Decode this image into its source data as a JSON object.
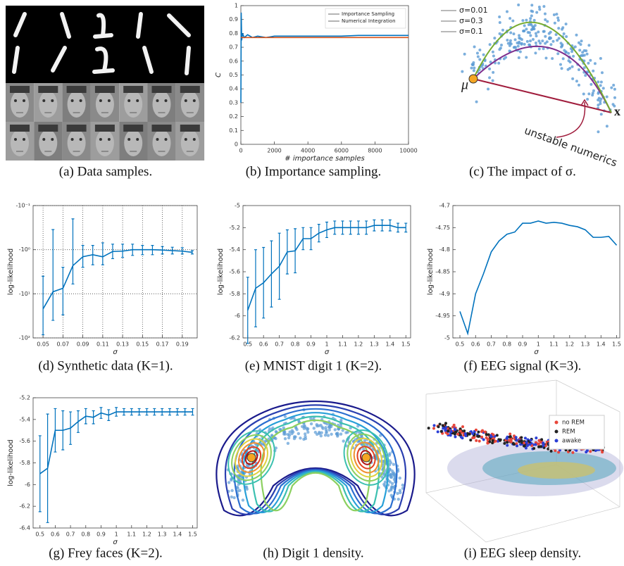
{
  "captions": [
    "(a) Data samples.",
    "(b) Importance sampling.",
    "(c) The impact of σ.",
    "(d) Synthetic data (K=1).",
    "(e) MNIST digit 1 (K=2).",
    "(f) EEG signal (K=3).",
    "(g) Frey faces (K=2).",
    "(h) Digit 1 density.",
    "(i) EEG sleep density."
  ],
  "sigma_panel": {
    "legend": [
      {
        "name": "σ=0.01",
        "color": "#a01c3c"
      },
      {
        "name": "σ=0.3",
        "color": "#7e2f8e"
      },
      {
        "name": "σ=0.1",
        "color": "#77ac30"
      }
    ],
    "mu": "μ",
    "x": "x",
    "note": "unstable numerics"
  },
  "sleep_legend": [
    {
      "name": "no REM",
      "color": "#e8463a"
    },
    {
      "name": "REM",
      "color": "#222222"
    },
    {
      "name": "awake",
      "color": "#2b3fd6"
    }
  ],
  "chart_data": [
    {
      "type": "line",
      "x_label": "# importance samples",
      "y_label": "C",
      "xlim": [
        0,
        10000
      ],
      "xticks": [
        0,
        2000,
        4000,
        6000,
        8000,
        10000
      ],
      "ylim": [
        0,
        1
      ],
      "yticks": [
        0,
        0.1,
        0.2,
        0.3,
        0.4,
        0.5,
        0.6,
        0.7,
        0.8,
        0.9,
        1
      ],
      "legend": "upper right",
      "grid": false,
      "series": [
        {
          "name": "Importance Sampling",
          "color": "#0072bd",
          "x": [
            1,
            20,
            50,
            100,
            200,
            400,
            700,
            1000,
            1500,
            2000,
            3000,
            4000,
            5000,
            6000,
            7000,
            8000,
            9000,
            10000
          ],
          "values": [
            0.3,
            0.95,
            0.75,
            0.8,
            0.77,
            0.79,
            0.77,
            0.78,
            0.77,
            0.78,
            0.78,
            0.78,
            0.78,
            0.78,
            0.785,
            0.785,
            0.785,
            0.785
          ]
        },
        {
          "name": "Numerical Integration",
          "color": "#d95319",
          "x": [
            0,
            10000
          ],
          "values": [
            0.77,
            0.77
          ]
        }
      ]
    },
    {
      "type": "line",
      "x_label": "σ",
      "y_label": "log-likelihood",
      "color": "#0072bd",
      "yscale": "log",
      "grid": true,
      "xlim": [
        0.04,
        0.205
      ],
      "xticks": [
        0.05,
        0.07,
        0.09,
        0.11,
        0.13,
        0.15,
        0.17,
        0.19
      ],
      "ylim": [
        -100,
        -0.1
      ],
      "yticks": [
        {
          "value": -100,
          "label": "-10²"
        },
        {
          "value": -10,
          "label": "-10¹"
        },
        {
          "value": -1,
          "label": "-10⁰"
        },
        {
          "value": -0.1,
          "label": "-10⁻¹"
        }
      ],
      "x": [
        0.05,
        0.06,
        0.07,
        0.08,
        0.09,
        0.1,
        0.11,
        0.12,
        0.13,
        0.14,
        0.15,
        0.16,
        0.17,
        0.18,
        0.19,
        0.2
      ],
      "values": [
        -22,
        -9,
        -7.5,
        -2.3,
        -1.45,
        -1.3,
        -1.45,
        -1.1,
        -1.08,
        -1.0,
        -1.0,
        -1.0,
        -1.02,
        -1.05,
        -1.08,
        -1.15
      ],
      "lower": [
        -85,
        -40,
        -30,
        -6,
        -2.5,
        -2.2,
        -2.2,
        -1.6,
        -1.5,
        -1.35,
        -1.3,
        -1.3,
        -1.25,
        -1.25,
        -1.25,
        -1.25
      ],
      "upper": [
        -4,
        -0.35,
        -2.5,
        -0.2,
        -0.8,
        -0.8,
        -0.7,
        -0.75,
        -0.75,
        -0.75,
        -0.8,
        -0.8,
        -0.85,
        -0.88,
        -0.9,
        -1.05
      ]
    },
    {
      "type": "line",
      "x_label": "σ",
      "y_label": "log-likelihood",
      "color": "#0072bd",
      "grid": false,
      "xlim": [
        0.47,
        1.53
      ],
      "xticks": [
        0.5,
        0.6,
        0.7,
        0.8,
        0.9,
        1,
        1.1,
        1.2,
        1.3,
        1.4,
        1.5
      ],
      "ylim": [
        -6.2,
        -5
      ],
      "yticks": [
        -6.2,
        -6,
        -5.8,
        -5.6,
        -5.4,
        -5.2,
        -5
      ],
      "x": [
        0.5,
        0.55,
        0.6,
        0.65,
        0.7,
        0.75,
        0.8,
        0.85,
        0.9,
        0.95,
        1,
        1.05,
        1.1,
        1.15,
        1.2,
        1.25,
        1.3,
        1.35,
        1.4,
        1.45,
        1.5
      ],
      "values": [
        -5.95,
        -5.75,
        -5.7,
        -5.62,
        -5.55,
        -5.42,
        -5.41,
        -5.3,
        -5.3,
        -5.25,
        -5.22,
        -5.2,
        -5.2,
        -5.2,
        -5.2,
        -5.2,
        -5.18,
        -5.18,
        -5.18,
        -5.2,
        -5.2
      ],
      "errors": [
        0.3,
        0.35,
        0.32,
        0.3,
        0.3,
        0.2,
        0.2,
        0.1,
        0.1,
        0.08,
        0.07,
        0.06,
        0.06,
        0.06,
        0.06,
        0.06,
        0.05,
        0.05,
        0.05,
        0.04,
        0.04
      ]
    },
    {
      "type": "line",
      "x_label": "σ",
      "y_label": "log-likelihood",
      "color": "#0072bd",
      "grid": false,
      "xlim": [
        0.455,
        1.52
      ],
      "xticks": [
        0.5,
        0.6,
        0.7,
        0.8,
        0.9,
        1,
        1.1,
        1.2,
        1.3,
        1.4,
        1.5
      ],
      "ylim": [
        -5,
        -4.7
      ],
      "yticks": [
        -5,
        -4.95,
        -4.9,
        -4.85,
        -4.8,
        -4.75,
        -4.7
      ],
      "x": [
        0.5,
        0.55,
        0.6,
        0.65,
        0.7,
        0.75,
        0.8,
        0.85,
        0.9,
        0.95,
        1,
        1.05,
        1.1,
        1.15,
        1.2,
        1.25,
        1.3,
        1.35,
        1.4,
        1.45,
        1.5
      ],
      "values": [
        -4.94,
        -4.99,
        -4.9,
        -4.855,
        -4.805,
        -4.78,
        -4.765,
        -4.76,
        -4.74,
        -4.74,
        -4.735,
        -4.74,
        -4.738,
        -4.74,
        -4.745,
        -4.748,
        -4.755,
        -4.772,
        -4.772,
        -4.77,
        -4.79
      ]
    },
    {
      "type": "line",
      "x_label": "σ",
      "y_label": "log-likelihood",
      "color": "#0072bd",
      "grid": false,
      "xlim": [
        0.455,
        1.53
      ],
      "xticks": [
        0.5,
        0.6,
        0.7,
        0.8,
        0.9,
        1,
        1.1,
        1.2,
        1.3,
        1.4,
        1.5
      ],
      "ylim": [
        -6.4,
        -5.2
      ],
      "yticks": [
        -6.4,
        -6.2,
        -6,
        -5.8,
        -5.6,
        -5.4,
        -5.2
      ],
      "x": [
        0.5,
        0.55,
        0.6,
        0.65,
        0.7,
        0.75,
        0.8,
        0.85,
        0.9,
        0.95,
        1,
        1.05,
        1.1,
        1.15,
        1.2,
        1.25,
        1.3,
        1.35,
        1.4,
        1.45,
        1.5
      ],
      "values": [
        -5.9,
        -5.85,
        -5.5,
        -5.5,
        -5.48,
        -5.42,
        -5.37,
        -5.38,
        -5.34,
        -5.36,
        -5.33,
        -5.33,
        -5.33,
        -5.33,
        -5.33,
        -5.33,
        -5.33,
        -5.33,
        -5.33,
        -5.33,
        -5.33
      ],
      "errors": [
        0.35,
        0.5,
        0.2,
        0.18,
        0.15,
        0.1,
        0.07,
        0.06,
        0.05,
        0.05,
        0.04,
        0.03,
        0.03,
        0.03,
        0.03,
        0.03,
        0.03,
        0.03,
        0.03,
        0.03,
        0.03
      ]
    }
  ]
}
